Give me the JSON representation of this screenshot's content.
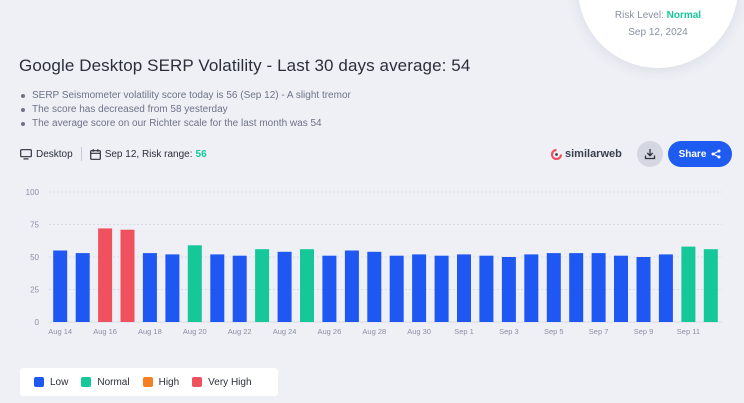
{
  "gauge": {
    "risk_label": "Risk Level:",
    "risk_value": "Normal",
    "date": "Sep 12, 2024"
  },
  "header": {
    "title": "Google Desktop SERP Volatility - Last 30 days average: 54"
  },
  "bullets": [
    "SERP Seismometer volatility score today is 56 (Sep 12) - A slight tremor",
    "The score has decreased from 58 yesterday",
    "The average score on our Richter scale for the last month was 54"
  ],
  "meta": {
    "device": "Desktop",
    "date_range_label": "Sep 12, Risk range:",
    "risk_range_value": "56"
  },
  "brand": "similarweb",
  "actions": {
    "share_label": "Share"
  },
  "colors": {
    "low": "#1f57f2",
    "normal": "#16c79a",
    "high": "#f57f23",
    "very_high": "#f0515f",
    "accent": "#1e5bf0",
    "gridline": "#d9dce6"
  },
  "chart_data": {
    "type": "bar",
    "title": "",
    "xlabel": "",
    "ylabel": "",
    "ylim": [
      0,
      100
    ],
    "yticks": [
      0,
      25,
      50,
      75,
      100
    ],
    "grid": true,
    "legend_placement": "bottom-left",
    "categories": [
      "Aug 14",
      "Aug 15",
      "Aug 16",
      "Aug 17",
      "Aug 18",
      "Aug 19",
      "Aug 20",
      "Aug 21",
      "Aug 22",
      "Aug 23",
      "Aug 24",
      "Aug 25",
      "Aug 26",
      "Aug 27",
      "Aug 28",
      "Aug 29",
      "Aug 30",
      "Aug 31",
      "Sep 1",
      "Sep 2",
      "Sep 3",
      "Sep 4",
      "Sep 5",
      "Sep 6",
      "Sep 7",
      "Sep 8",
      "Sep 9",
      "Sep 10",
      "Sep 11",
      "Sep 12"
    ],
    "x_tick_labels": [
      "Aug 14",
      "",
      "Aug 16",
      "",
      "Aug 18",
      "",
      "Aug 20",
      "",
      "Aug 22",
      "",
      "Aug 24",
      "",
      "Aug 26",
      "",
      "Aug 28",
      "",
      "Aug 30",
      "",
      "Sep 1",
      "",
      "Sep 3",
      "",
      "Sep 5",
      "",
      "Sep 7",
      "",
      "Sep 9",
      "",
      "Sep 11",
      ""
    ],
    "values": [
      55,
      53,
      72,
      71,
      53,
      52,
      59,
      52,
      51,
      56,
      54,
      56,
      51,
      55,
      54,
      51,
      52,
      51,
      52,
      51,
      50,
      52,
      53,
      53,
      53,
      51,
      50,
      52,
      58,
      56
    ],
    "risk_levels": [
      "low",
      "low",
      "very_high",
      "very_high",
      "low",
      "low",
      "normal",
      "low",
      "low",
      "normal",
      "low",
      "normal",
      "low",
      "low",
      "low",
      "low",
      "low",
      "low",
      "low",
      "low",
      "low",
      "low",
      "low",
      "low",
      "low",
      "low",
      "low",
      "low",
      "normal",
      "normal"
    ],
    "legend": [
      {
        "key": "low",
        "label": "Low"
      },
      {
        "key": "normal",
        "label": "Normal"
      },
      {
        "key": "high",
        "label": "High"
      },
      {
        "key": "very_high",
        "label": "Very High"
      }
    ]
  }
}
